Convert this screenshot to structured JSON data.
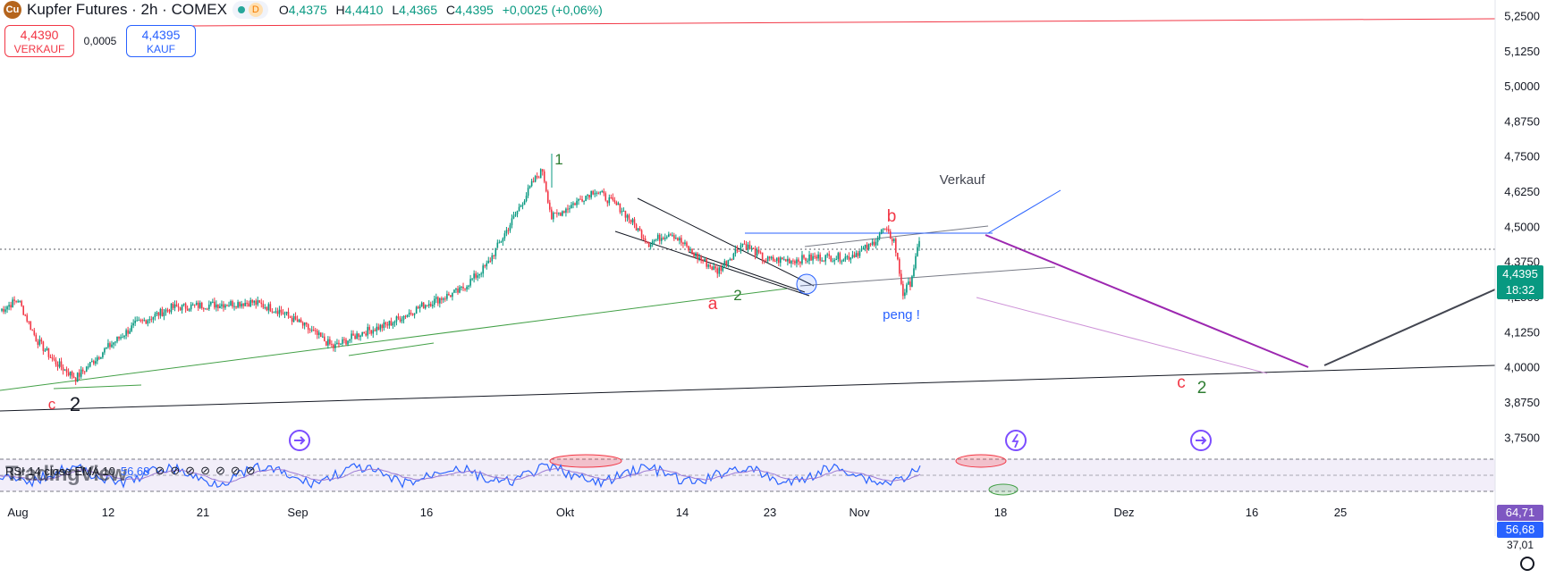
{
  "header": {
    "symbol_title": "Kupfer Futures · 2h · COMEX",
    "logo_icon": "copper-logo-icon",
    "market_dot": "market-open-dot-icon",
    "delayed_badge": "D",
    "ohlc": [
      {
        "key": "O",
        "value": "4,4375"
      },
      {
        "key": "H",
        "value": "4,4410"
      },
      {
        "key": "L",
        "value": "4,4365"
      },
      {
        "key": "C",
        "value": "4,4395"
      },
      {
        "key": "",
        "value": "+0,0025 (+0,06%)"
      }
    ]
  },
  "trade": {
    "sell_price": "4,4390",
    "sell_label": "VERKAUF",
    "spread": "0,0005",
    "buy_price": "4,4395",
    "buy_label": "KAUF"
  },
  "rsi": {
    "label": "RSI 14 close EMA 10",
    "value": "56,68",
    "value2": "64,71",
    "price_tag_value": "56,68",
    "low_tick": "37,01"
  },
  "watermark": "TradingView",
  "colors": {
    "up": "#089981",
    "down": "#f23645",
    "accent": "#2962ff",
    "wave_green": "#2e7d32",
    "wave_purple": "#9c27b0"
  },
  "chart_data": {
    "type": "candlestick",
    "title": "Kupfer Futures · 2h · COMEX",
    "y_ticks": [
      "5,2500",
      "5,1250",
      "5,0000",
      "4,8750",
      "4,7500",
      "4,6250",
      "4,5000",
      "4,3750",
      "4,2500",
      "4,1250",
      "4,0000",
      "3,8750",
      "3,7500"
    ],
    "ylim": [
      3.7,
      5.28
    ],
    "x_ticks": [
      "Aug",
      "12",
      "21",
      "Sep",
      "16",
      "Okt",
      "14",
      "23",
      "Nov",
      "18",
      "Dez",
      "16",
      "25"
    ],
    "last_price": "4,4395",
    "countdown": "18:32",
    "anchors": [
      {
        "t": 0,
        "v": 4.2
      },
      {
        "t": 10,
        "v": 4.24
      },
      {
        "t": 20,
        "v": 4.1
      },
      {
        "t": 30,
        "v": 4.02
      },
      {
        "t": 42,
        "v": 3.96
      },
      {
        "t": 58,
        "v": 4.06
      },
      {
        "t": 75,
        "v": 4.15
      },
      {
        "t": 95,
        "v": 4.21
      },
      {
        "t": 115,
        "v": 4.22
      },
      {
        "t": 140,
        "v": 4.23
      },
      {
        "t": 155,
        "v": 4.2
      },
      {
        "t": 170,
        "v": 4.14
      },
      {
        "t": 185,
        "v": 4.07
      },
      {
        "t": 200,
        "v": 4.12
      },
      {
        "t": 215,
        "v": 4.15
      },
      {
        "t": 235,
        "v": 4.22
      },
      {
        "t": 255,
        "v": 4.27
      },
      {
        "t": 270,
        "v": 4.36
      },
      {
        "t": 285,
        "v": 4.53
      },
      {
        "t": 296,
        "v": 4.66
      },
      {
        "t": 301,
        "v": 4.7
      },
      {
        "t": 306,
        "v": 4.53
      },
      {
        "t": 318,
        "v": 4.58
      },
      {
        "t": 330,
        "v": 4.63
      },
      {
        "t": 345,
        "v": 4.56
      },
      {
        "t": 360,
        "v": 4.44
      },
      {
        "t": 372,
        "v": 4.48
      },
      {
        "t": 385,
        "v": 4.4
      },
      {
        "t": 398,
        "v": 4.34
      },
      {
        "t": 412,
        "v": 4.44
      },
      {
        "t": 425,
        "v": 4.38
      },
      {
        "t": 440,
        "v": 4.38
      },
      {
        "t": 455,
        "v": 4.39
      },
      {
        "t": 470,
        "v": 4.39
      },
      {
        "t": 483,
        "v": 4.43
      },
      {
        "t": 490,
        "v": 4.49
      },
      {
        "t": 496,
        "v": 4.45
      },
      {
        "t": 501,
        "v": 4.26
      },
      {
        "t": 505,
        "v": 4.3
      },
      {
        "t": 510,
        "v": 4.44
      }
    ],
    "annotations": {
      "wave_labels": [
        {
          "text": "1",
          "color": "#2e7d32"
        },
        {
          "text": "2",
          "color": "#2e7d32"
        },
        {
          "text": "2",
          "color": "#131722"
        },
        {
          "text": "2",
          "color": "#2e7d32"
        },
        {
          "text": "a",
          "color": "#f23645"
        },
        {
          "text": "b",
          "color": "#f23645"
        },
        {
          "text": "c",
          "color": "#f23645"
        },
        {
          "text": "c",
          "color": "#f23645"
        }
      ],
      "notes": [
        "Verkauf",
        "peng !"
      ]
    },
    "grid": false,
    "legend": "none"
  }
}
